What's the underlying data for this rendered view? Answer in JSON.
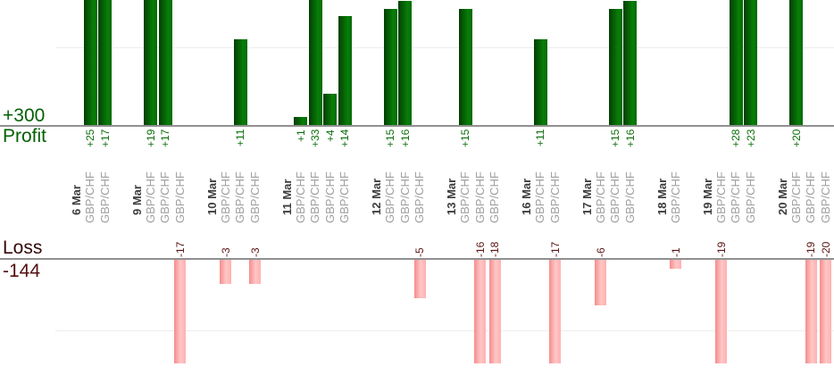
{
  "labels": {
    "profit_total": "+300",
    "profit_row": "Profit",
    "loss_row": "Loss",
    "loss_total": "-144"
  },
  "chart_data": {
    "type": "bar",
    "title": "",
    "row_labels": {
      "profit": "Profit",
      "loss": "Loss"
    },
    "totals": {
      "profit": 300,
      "profit_label": "+300",
      "loss": -144,
      "loss_label": "-144"
    },
    "layout": {
      "orientation": "vertical-bars",
      "grid": "horizontal",
      "legend": false,
      "positive_bars": "above Profit baseline, green",
      "negative_bars": "below Loss baseline, pink",
      "x_labels_rotated": true
    },
    "groups": [
      {
        "date": "6 Mar",
        "trades": [
          {
            "symbol": "GBP/CHF",
            "value": 25
          },
          {
            "symbol": "GBP/CHF",
            "value": 17
          }
        ]
      },
      {
        "date": "9 Mar",
        "trades": [
          {
            "symbol": "GBP/CHF",
            "value": 19
          },
          {
            "symbol": "GBP/CHF",
            "value": 17
          },
          {
            "symbol": "GBP/CHF",
            "value": -17
          }
        ]
      },
      {
        "date": "10 Mar",
        "trades": [
          {
            "symbol": "GBP/CHF",
            "value": -3
          },
          {
            "symbol": "GBP/CHF",
            "value": 11
          },
          {
            "symbol": "GBP/CHF",
            "value": -3
          }
        ]
      },
      {
        "date": "11 Mar",
        "trades": [
          {
            "symbol": "GBP/CHF",
            "value": 1
          },
          {
            "symbol": "GBP/CHF",
            "value": 33
          },
          {
            "symbol": "GBP/CHF",
            "value": 4
          },
          {
            "symbol": "GBP/CHF",
            "value": 14
          }
        ]
      },
      {
        "date": "12 Mar",
        "trades": [
          {
            "symbol": "GBP/CHF",
            "value": 15
          },
          {
            "symbol": "GBP/CHF",
            "value": 16
          },
          {
            "symbol": "GBP/CHF",
            "value": -5
          }
        ]
      },
      {
        "date": "13 Mar",
        "trades": [
          {
            "symbol": "GBP/CHF",
            "value": 15
          },
          {
            "symbol": "GBP/CHF",
            "value": -16
          },
          {
            "symbol": "GBP/CHF",
            "value": -18
          }
        ]
      },
      {
        "date": "16 Mar",
        "trades": [
          {
            "symbol": "GBP/CHF",
            "value": 11
          },
          {
            "symbol": "GBP/CHF",
            "value": -17
          }
        ]
      },
      {
        "date": "17 Mar",
        "trades": [
          {
            "symbol": "GBP/CHF",
            "value": -6
          },
          {
            "symbol": "GBP/CHF",
            "value": 15
          },
          {
            "symbol": "GBP/CHF",
            "value": 16
          }
        ]
      },
      {
        "date": "18 Mar",
        "trades": [
          {
            "symbol": "GBP/CHF",
            "value": -1
          }
        ]
      },
      {
        "date": "19 Mar",
        "trades": [
          {
            "symbol": "GBP/CHF",
            "value": -19
          },
          {
            "symbol": "GBP/CHF",
            "value": 28
          },
          {
            "symbol": "GBP/CHF",
            "value": 23
          }
        ]
      },
      {
        "date": "20 Mar",
        "trades": [
          {
            "symbol": "GBP/CHF",
            "value": 20
          },
          {
            "symbol": "GBP/CHF",
            "value": -19
          },
          {
            "symbol": "GBP/CHF",
            "value": -20
          }
        ]
      }
    ]
  },
  "colors": {
    "profit_bar_dark": "#053e05",
    "profit_bar_light": "#077f07",
    "profit_bar_edge": "#066806",
    "loss_bar_dark": "#f58c8c",
    "loss_bar_light": "#ffc6c6",
    "loss_bar_edge": "#ffb0b0",
    "profit_text": "#036003",
    "profit_value_text": "#0b6e0b",
    "loss_text": "#330808",
    "loss_total_text": "#541010",
    "loss_value_text": "#5a1414",
    "date_text": "#3d3d3d",
    "symbol_text": "#a0a0a0",
    "axis_line": "#909090",
    "gridline": "#ededed"
  }
}
